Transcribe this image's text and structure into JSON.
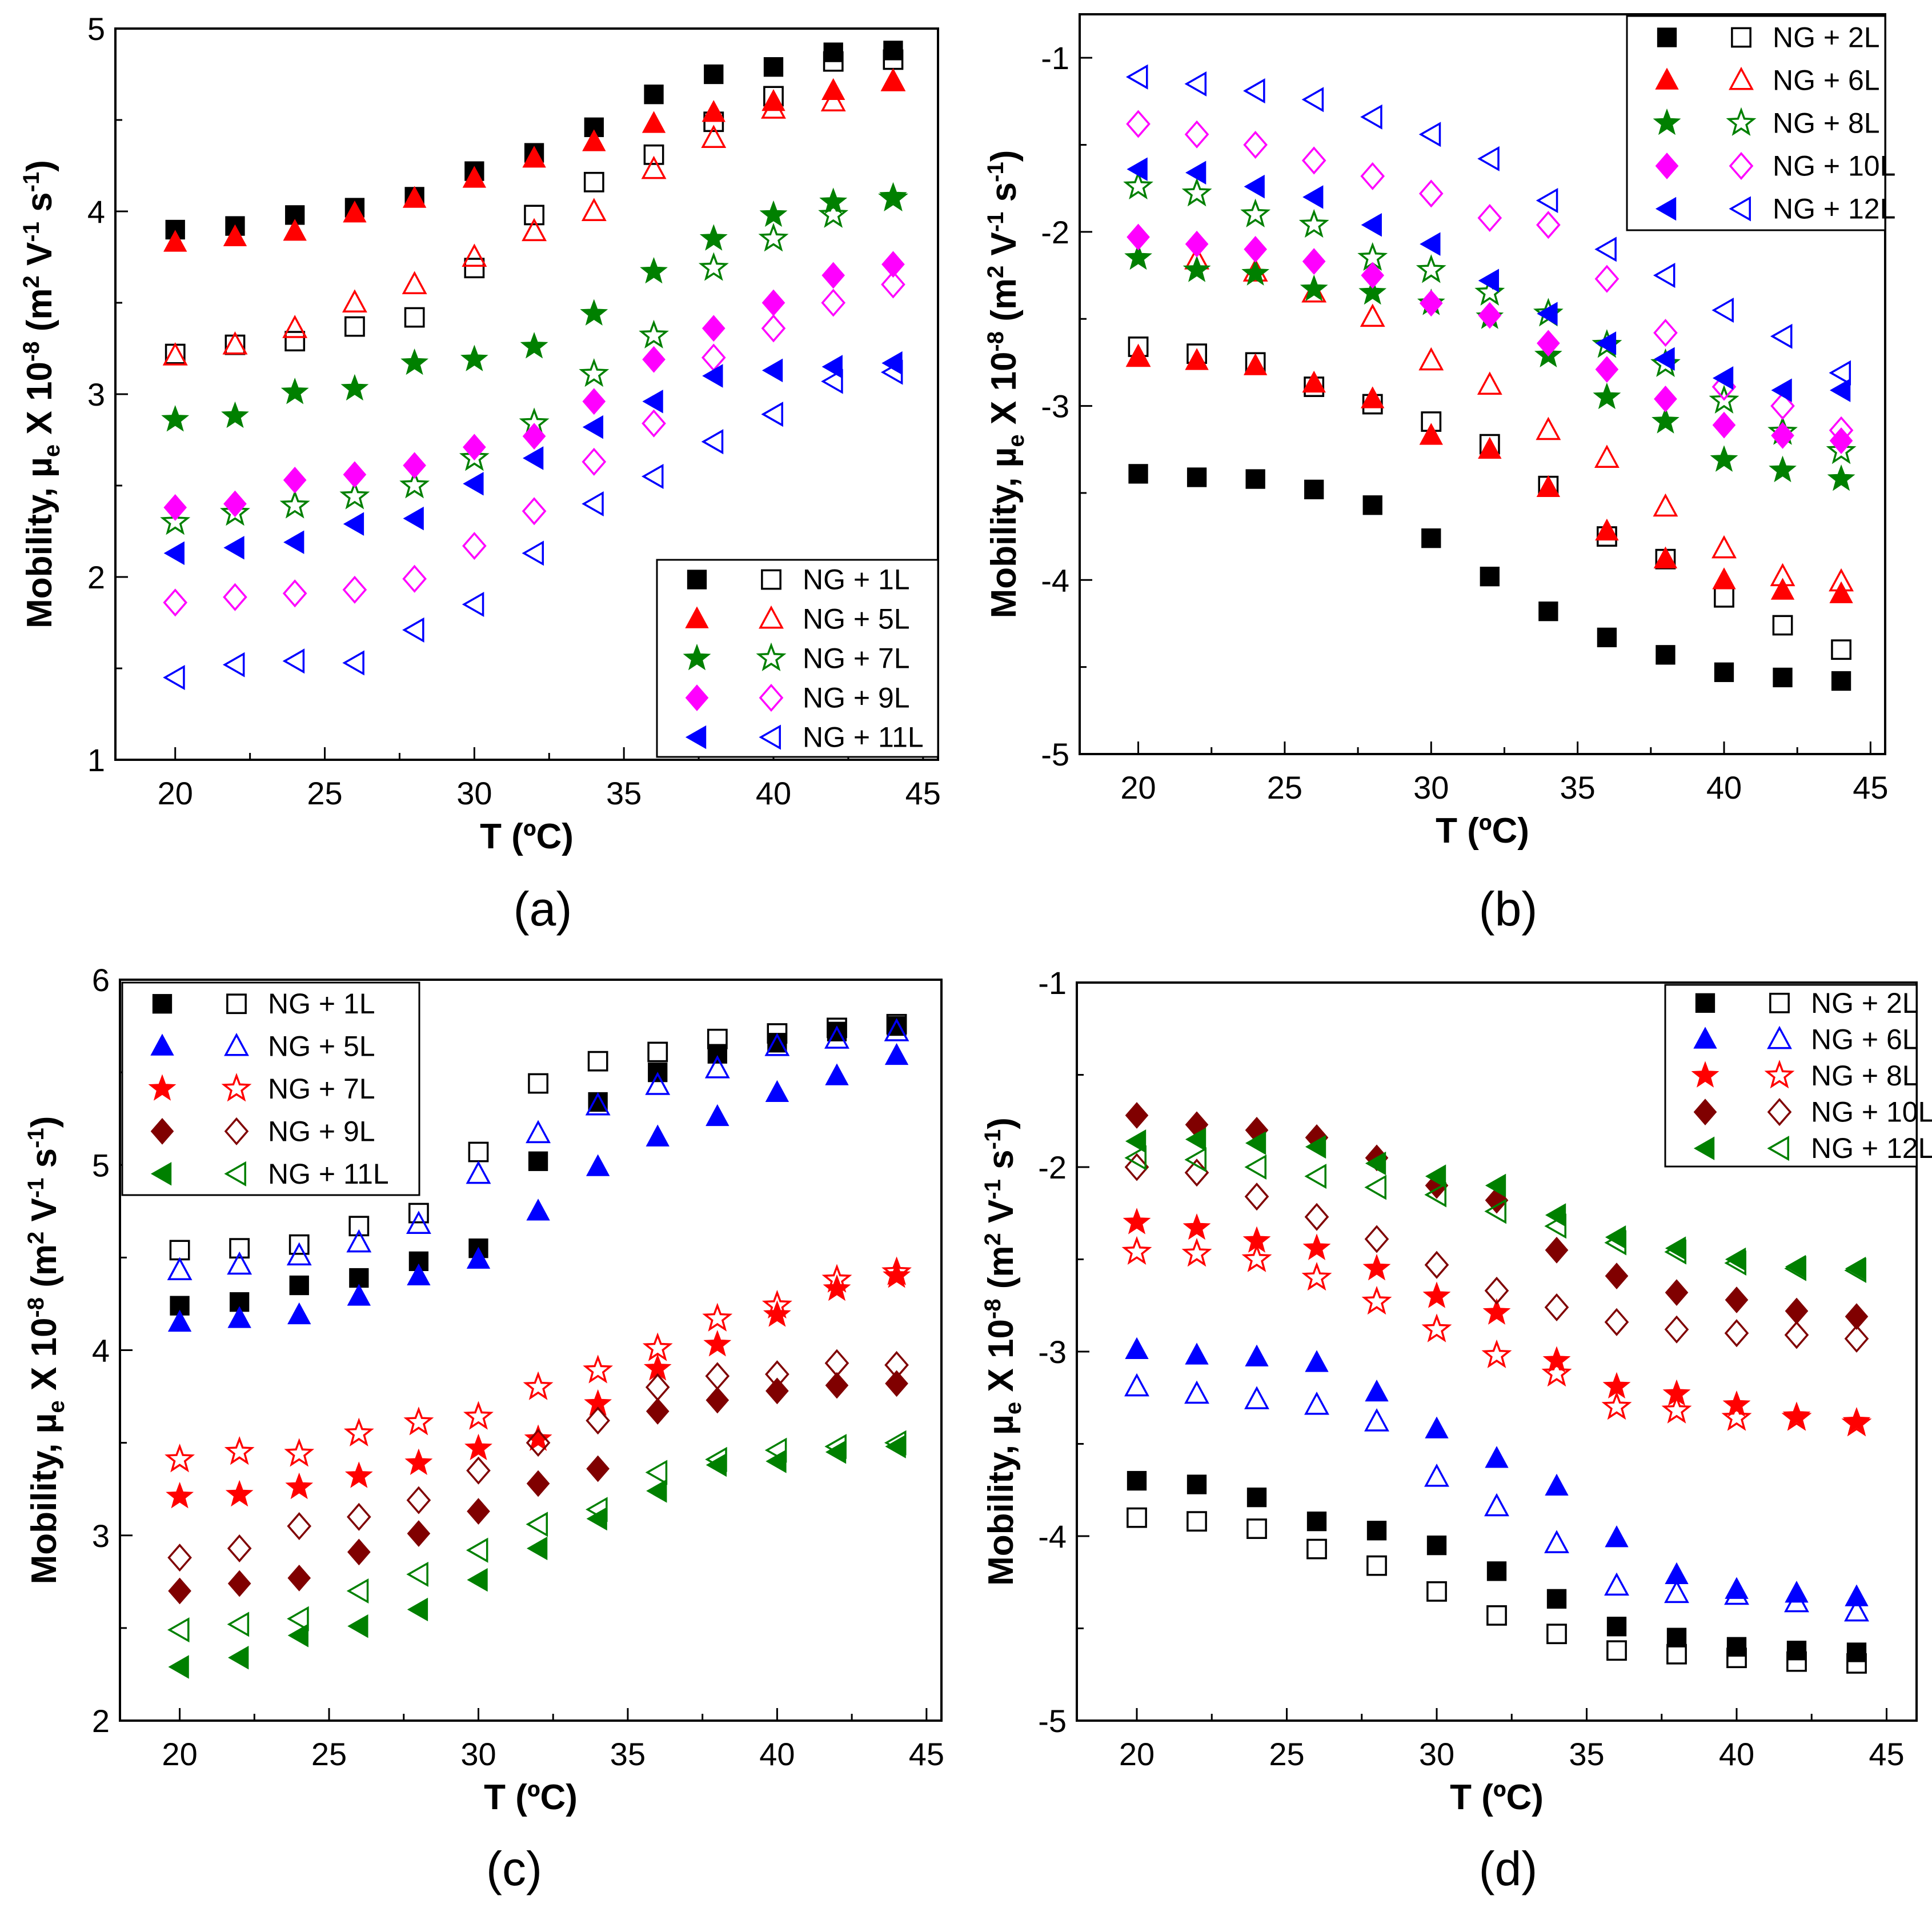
{
  "chart_data": [
    {
      "type": "scatter",
      "caption": "(a)",
      "xlabel": "T (ºC)",
      "ylabel_parts": [
        "Mobility, µ",
        "e",
        " X 10",
        "-8",
        " (m",
        "2",
        " V",
        "-1",
        " s",
        "-1",
        ")"
      ],
      "xlim": [
        18,
        45.5
      ],
      "ylim": [
        1,
        5
      ],
      "xticks": [
        20,
        25,
        30,
        35,
        40,
        45
      ],
      "yticks": [
        1,
        2,
        3,
        4,
        5
      ],
      "legend_position": "bottom-right",
      "x": [
        20,
        22,
        24,
        26,
        28,
        30,
        32,
        34,
        36,
        38,
        40,
        42,
        44
      ],
      "series": [
        {
          "name": "NG + 1L",
          "color": "#000000",
          "marker": "square",
          "filled": [
            3.9,
            3.92,
            3.98,
            4.02,
            4.08,
            4.22,
            4.32,
            4.46,
            4.64,
            4.75,
            4.79,
            4.87,
            4.88
          ],
          "open": [
            3.22,
            3.27,
            3.29,
            3.37,
            3.42,
            3.69,
            3.98,
            4.16,
            4.31,
            4.49,
            4.63,
            4.82,
            4.83
          ]
        },
        {
          "name": "NG + 5L",
          "color": "#ff0000",
          "marker": "triangle-up",
          "filled": [
            3.83,
            3.86,
            3.89,
            3.99,
            4.07,
            4.18,
            4.29,
            4.38,
            4.48,
            4.54,
            4.6,
            4.66,
            4.71
          ],
          "open": [
            3.21,
            3.27,
            3.36,
            3.5,
            3.6,
            3.75,
            3.89,
            4.0,
            4.23,
            4.4,
            4.56,
            4.6,
            4.71
          ]
        },
        {
          "name": "NG + 7L",
          "color": "#008000",
          "marker": "star",
          "filled": [
            2.86,
            2.88,
            3.01,
            3.03,
            3.17,
            3.19,
            3.26,
            3.44,
            3.67,
            3.85,
            3.98,
            4.05,
            4.08
          ],
          "open": [
            2.3,
            2.35,
            2.39,
            2.44,
            2.5,
            2.65,
            2.84,
            3.11,
            3.32,
            3.69,
            3.85,
            3.98,
            4.07
          ]
        },
        {
          "name": "NG + 9L",
          "color": "#ff00ff",
          "marker": "diamond",
          "filled": [
            2.38,
            2.4,
            2.53,
            2.56,
            2.61,
            2.71,
            2.77,
            2.96,
            3.19,
            3.36,
            3.5,
            3.65,
            3.71
          ],
          "open": [
            1.86,
            1.89,
            1.91,
            1.93,
            1.99,
            2.17,
            2.36,
            2.63,
            2.84,
            3.2,
            3.36,
            3.5,
            3.6
          ]
        },
        {
          "name": "NG + 11L",
          "color": "#0000ff",
          "marker": "triangle-left",
          "filled": [
            2.13,
            2.16,
            2.19,
            2.29,
            2.32,
            2.51,
            2.65,
            2.82,
            2.96,
            3.1,
            3.13,
            3.15,
            3.17
          ],
          "open": [
            1.45,
            1.52,
            1.54,
            1.53,
            1.71,
            1.85,
            2.13,
            2.4,
            2.55,
            2.74,
            2.89,
            3.07,
            3.12
          ]
        }
      ]
    },
    {
      "type": "scatter",
      "caption": "(b)",
      "xlabel": "T (ºC)",
      "ylabel_parts": [
        "Mobility, µ",
        "e",
        " X 10",
        "-8",
        " (m",
        "2",
        " V",
        "-1",
        " s",
        "-1",
        ")"
      ],
      "xlim": [
        18,
        45.5
      ],
      "ylim": [
        -5,
        -0.75
      ],
      "xticks": [
        20,
        25,
        30,
        35,
        40,
        45
      ],
      "yticks": [
        -5,
        -4,
        -3,
        -2,
        -1
      ],
      "legend_position": "top-right",
      "x": [
        20,
        22,
        24,
        26,
        28,
        30,
        32,
        34,
        36,
        38,
        40,
        42,
        44
      ],
      "series": [
        {
          "name": "NG + 2L",
          "color": "#000000",
          "marker": "square",
          "filled": [
            -3.39,
            -3.41,
            -3.42,
            -3.48,
            -3.57,
            -3.76,
            -3.98,
            -4.18,
            -4.33,
            -4.43,
            -4.53,
            -4.56,
            -4.58
          ],
          "open": [
            -2.66,
            -2.7,
            -2.75,
            -2.89,
            -2.99,
            -3.09,
            -3.22,
            -3.46,
            -3.75,
            -3.88,
            -4.1,
            -4.26,
            -4.4
          ]
        },
        {
          "name": "NG + 6L",
          "color": "#ff0000",
          "marker": "triangle-up",
          "filled": [
            -2.72,
            -2.74,
            -2.77,
            -2.87,
            -2.96,
            -3.17,
            -3.25,
            -3.47,
            -3.72,
            -3.88,
            -4.0,
            -4.06,
            -4.08
          ]
        },
        {
          "name": "NG + 8L",
          "color": "#008000",
          "marker": "star",
          "filled": [
            -2.15,
            -2.22,
            -2.24,
            -2.33,
            -2.35,
            -2.41,
            -2.49,
            -2.71,
            -2.95,
            -3.09,
            -3.31,
            -3.37,
            -3.42
          ],
          "open": [
            -1.74,
            -1.78,
            -1.9,
            -1.96,
            -2.15,
            -2.22,
            -2.35,
            -2.47,
            -2.65,
            -2.76,
            -2.97,
            -3.15,
            -3.26
          ]
        },
        {
          "name": "NG + 10L",
          "color": "#ff00ff",
          "marker": "diamond",
          "filled": [
            -2.03,
            -2.07,
            -2.1,
            -2.17,
            -2.25,
            -2.41,
            -2.48,
            -2.64,
            -2.79,
            -2.96,
            -3.11,
            -3.17,
            -3.2
          ],
          "open": [
            -1.38,
            -1.44,
            -1.5,
            -1.59,
            -1.68,
            -1.78,
            -1.92,
            -1.96,
            -2.27,
            -2.58,
            -2.89,
            -3.0,
            -3.14
          ]
        },
        {
          "name": "NG + 12L",
          "color": "#0000ff",
          "marker": "triangle-left",
          "filled": [
            -1.64,
            -1.66,
            -1.74,
            -1.8,
            -1.96,
            -2.07,
            -2.28,
            -2.47,
            -2.64,
            -2.73,
            -2.84,
            -2.91,
            -2.91
          ],
          "open": [
            -1.11,
            -1.15,
            -1.19,
            -1.24,
            -1.34,
            -1.44,
            -1.58,
            -1.82,
            -2.1,
            -2.25,
            -2.45,
            -2.6,
            -2.81
          ]
        }
      ],
      "series_open_extra": {
        "NG + 6L": [
          -2.72,
          -2.16,
          -2.23,
          -2.35,
          -2.49,
          -2.74,
          -2.88,
          -3.14,
          -3.3,
          -3.58,
          -3.82,
          -3.98,
          -4.01
        ]
      }
    },
    {
      "type": "scatter",
      "caption": "(c)",
      "xlabel": "T (ºC)",
      "ylabel_parts": [
        "Mobility, µ",
        "e",
        " X 10",
        "-8",
        " (m",
        "2",
        " V",
        "-1",
        " s",
        "-1",
        ")"
      ],
      "xlim": [
        18,
        45.5
      ],
      "ylim": [
        2,
        6
      ],
      "xticks": [
        20,
        25,
        30,
        35,
        40,
        45
      ],
      "yticks": [
        2,
        3,
        4,
        5,
        6
      ],
      "legend_position": "top-left",
      "x": [
        20,
        22,
        24,
        26,
        28,
        30,
        32,
        34,
        36,
        38,
        40,
        42,
        44
      ],
      "series": [
        {
          "name": "NG + 1L",
          "color": "#000000",
          "marker": "square",
          "filled": [
            4.24,
            4.26,
            4.35,
            4.39,
            4.48,
            4.55,
            5.02,
            5.34,
            5.5,
            5.6,
            5.66,
            5.72,
            5.75
          ],
          "open": [
            4.54,
            4.55,
            4.57,
            4.67,
            4.74,
            5.07,
            5.44,
            5.56,
            5.61,
            5.68,
            5.71,
            5.74,
            5.76
          ]
        },
        {
          "name": "NG + 5L",
          "color": "#0000ff",
          "marker": "triangle-up",
          "filled": [
            4.15,
            4.17,
            4.19,
            4.29,
            4.4,
            4.49,
            4.75,
            4.99,
            5.15,
            5.26,
            5.39,
            5.48,
            5.59
          ],
          "open": [
            4.43,
            4.46,
            4.51,
            4.58,
            4.68,
            4.95,
            5.17,
            5.32,
            5.43,
            5.52,
            5.64,
            5.68,
            5.72
          ]
        },
        {
          "name": "NG + 7L",
          "color": "#ff0000",
          "marker": "star",
          "filled": [
            3.21,
            3.22,
            3.26,
            3.32,
            3.39,
            3.47,
            3.52,
            3.71,
            3.9,
            4.03,
            4.19,
            4.33,
            4.4
          ],
          "open": [
            3.41,
            3.45,
            3.44,
            3.55,
            3.61,
            3.64,
            3.8,
            3.89,
            4.01,
            4.17,
            4.24,
            4.38,
            4.42
          ]
        },
        {
          "name": "NG + 9L",
          "color": "#800000",
          "marker": "diamond",
          "filled": [
            2.7,
            2.74,
            2.77,
            2.91,
            3.01,
            3.13,
            3.28,
            3.36,
            3.67,
            3.73,
            3.78,
            3.81,
            3.82
          ],
          "open": [
            2.88,
            2.93,
            3.05,
            3.1,
            3.19,
            3.35,
            3.5,
            3.62,
            3.8,
            3.86,
            3.87,
            3.93,
            3.92
          ]
        },
        {
          "name": "NG + 11L",
          "color": "#008000",
          "marker": "triangle-left",
          "filled": [
            2.29,
            2.34,
            2.46,
            2.51,
            2.6,
            2.76,
            2.93,
            3.09,
            3.24,
            3.38,
            3.4,
            3.45,
            3.48
          ],
          "open": [
            2.49,
            2.52,
            2.55,
            2.7,
            2.79,
            2.92,
            3.06,
            3.14,
            3.34,
            3.41,
            3.46,
            3.48,
            3.5
          ]
        }
      ]
    },
    {
      "type": "scatter",
      "caption": "(d)",
      "xlabel": "T (ºC)",
      "ylabel_parts": [
        "Mobility, µ",
        "e",
        " X 10",
        "-8",
        " (m",
        "2",
        " V",
        "-1",
        " s",
        "-1",
        ")"
      ],
      "xlim": [
        18,
        46
      ],
      "ylim": [
        -5,
        -1
      ],
      "xticks": [
        20,
        25,
        30,
        35,
        40,
        45
      ],
      "yticks": [
        -5,
        -4,
        -3,
        -2,
        -1
      ],
      "legend_position": "top-right",
      "x": [
        20,
        22,
        24,
        26,
        28,
        30,
        32,
        34,
        36,
        38,
        40,
        42,
        44
      ],
      "series": [
        {
          "name": "NG + 2L",
          "color": "#000000",
          "marker": "square",
          "filled": [
            -3.7,
            -3.72,
            -3.79,
            -3.92,
            -3.97,
            -4.05,
            -4.19,
            -4.34,
            -4.49,
            -4.55,
            -4.6,
            -4.62,
            -4.63
          ],
          "open": [
            -3.9,
            -3.92,
            -3.96,
            -4.07,
            -4.16,
            -4.3,
            -4.43,
            -4.53,
            -4.62,
            -4.64,
            -4.66,
            -4.68,
            -4.69
          ]
        },
        {
          "name": "NG + 6L",
          "color": "#0000ff",
          "marker": "triangle-up",
          "filled": [
            -2.99,
            -3.02,
            -3.03,
            -3.06,
            -3.22,
            -3.42,
            -3.58,
            -3.73,
            -4.01,
            -4.21,
            -4.29,
            -4.31,
            -4.33
          ],
          "open": [
            -3.19,
            -3.23,
            -3.26,
            -3.29,
            -3.38,
            -3.68,
            -3.84,
            -4.04,
            -4.27,
            -4.31,
            -4.32,
            -4.36,
            -4.41
          ]
        },
        {
          "name": "NG + 8L",
          "color": "#ff0000",
          "marker": "star",
          "filled": [
            -2.3,
            -2.33,
            -2.4,
            -2.44,
            -2.55,
            -2.7,
            -2.79,
            -3.05,
            -3.19,
            -3.23,
            -3.29,
            -3.35,
            -3.38
          ],
          "open": [
            -2.46,
            -2.47,
            -2.5,
            -2.6,
            -2.73,
            -2.88,
            -3.02,
            -3.12,
            -3.3,
            -3.32,
            -3.36,
            -3.36,
            -3.39
          ]
        },
        {
          "name": "NG + 10L",
          "color": "#800000",
          "marker": "diamond",
          "filled": [
            -1.72,
            -1.77,
            -1.8,
            -1.84,
            -1.95,
            -2.1,
            -2.18,
            -2.45,
            -2.59,
            -2.68,
            -2.72,
            -2.78,
            -2.81
          ],
          "open": [
            -2.0,
            -2.03,
            -2.16,
            -2.27,
            -2.39,
            -2.53,
            -2.67,
            -2.76,
            -2.84,
            -2.88,
            -2.9,
            -2.91,
            -2.93
          ]
        },
        {
          "name": "NG + 12L",
          "color": "#008000",
          "marker": "triangle-left",
          "filled": [
            -1.86,
            -1.85,
            -1.87,
            -1.89,
            -1.98,
            -2.05,
            -2.1,
            -2.26,
            -2.38,
            -2.44,
            -2.5,
            -2.54,
            -2.55
          ],
          "open": [
            -1.95,
            -1.96,
            -2.0,
            -2.05,
            -2.11,
            -2.15,
            -2.24,
            -2.32,
            -2.41,
            -2.46,
            -2.52,
            -2.55,
            -2.56
          ]
        }
      ]
    }
  ]
}
